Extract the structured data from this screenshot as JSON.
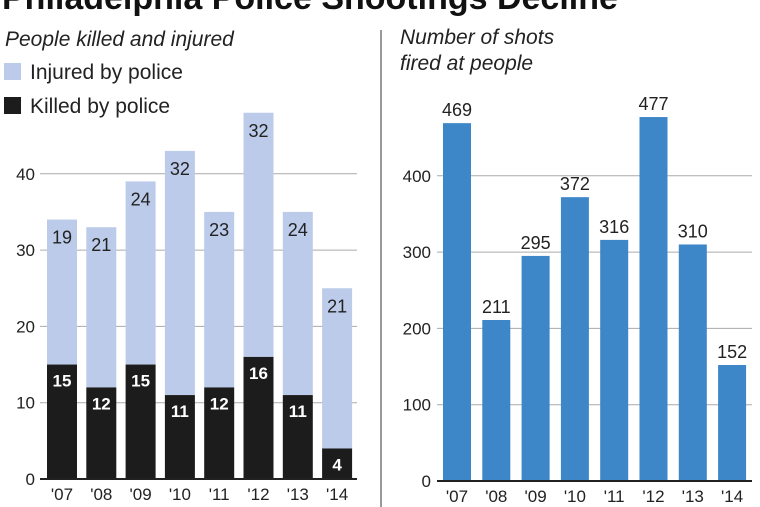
{
  "title": "Philadelphia Police Shootings Decline",
  "colors": {
    "injured": "#bccbe9",
    "killed": "#1c1c1c",
    "shots": "#3d86c8",
    "grid": "#aaaaaa"
  },
  "chart_data": [
    {
      "type": "bar",
      "stacked": true,
      "title": "People killed and injured",
      "categories": [
        "'07",
        "'08",
        "'09",
        "'10",
        "'11",
        "'12",
        "'13",
        "'14"
      ],
      "series": [
        {
          "name": "Killed by police",
          "values": [
            15,
            12,
            15,
            11,
            12,
            16,
            11,
            4
          ]
        },
        {
          "name": "Injured by police",
          "values": [
            19,
            21,
            24,
            32,
            23,
            32,
            24,
            21
          ]
        }
      ],
      "yticks": [
        "0",
        "10",
        "20",
        "30",
        "40"
      ],
      "ylim": [
        0,
        50
      ],
      "legend": "top-left",
      "grid": true
    },
    {
      "type": "bar",
      "title": "Number of shots fired at people",
      "title_lines": [
        "Number of shots",
        "fired at people"
      ],
      "categories": [
        "'07",
        "'08",
        "'09",
        "'10",
        "'11",
        "'12",
        "'13",
        "'14"
      ],
      "values": [
        469,
        211,
        295,
        372,
        316,
        477,
        310,
        152
      ],
      "yticks": [
        "0",
        "100",
        "200",
        "300",
        "400"
      ],
      "ylim": [
        0,
        500
      ],
      "grid": true
    }
  ]
}
